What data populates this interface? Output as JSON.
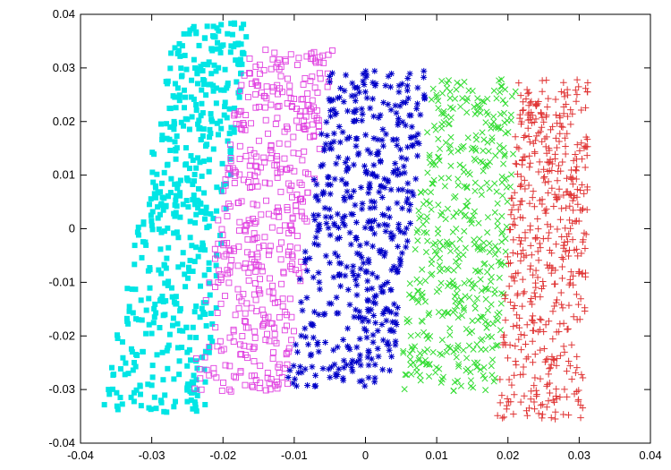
{
  "chart_data": {
    "type": "scatter",
    "title": "",
    "xlabel": "",
    "ylabel": "",
    "xlim": [
      -0.04,
      0.04
    ],
    "ylim": [
      -0.04,
      0.04
    ],
    "grid": false,
    "legend": "none",
    "x_ticks": [
      -0.04,
      -0.03,
      -0.02,
      -0.01,
      0,
      0.01,
      0.02,
      0.03,
      0.04
    ],
    "x_tick_labels": [
      "-0.04",
      "-0.03",
      "-0.02",
      "-0.01",
      "0",
      "0.01",
      "0.02",
      "0.03",
      "0.04"
    ],
    "y_ticks": [
      -0.04,
      -0.03,
      -0.02,
      -0.01,
      0,
      0.01,
      0.02,
      0.03,
      0.04
    ],
    "y_tick_labels": [
      "-0.04",
      "-0.03",
      "-0.02",
      "-0.01",
      "0",
      "0.01",
      "0.02",
      "0.03",
      "0.04"
    ],
    "series": [
      {
        "marker": "filled-square",
        "color": "#00e5e5",
        "count": 520,
        "region": {
          "y_bottom": -0.0345,
          "y_top": 0.0385,
          "x_left_at_bottom": -0.037,
          "x_left_at_top": -0.0265,
          "x_right_at_bottom": -0.0225,
          "x_right_at_top": -0.0165
        }
      },
      {
        "marker": "open-square",
        "color": "#e040e0",
        "count": 480,
        "region": {
          "y_bottom": -0.0305,
          "y_top": 0.0335,
          "x_left_at_bottom": -0.0245,
          "x_left_at_top": -0.017,
          "x_right_at_bottom": -0.011,
          "x_right_at_top": -0.0045
        }
      },
      {
        "marker": "asterisk",
        "color": "#0000c8",
        "count": 500,
        "region": {
          "y_bottom": -0.0295,
          "y_top": 0.0295,
          "x_left_at_bottom": -0.0115,
          "x_left_at_top": -0.005,
          "x_right_at_bottom": 0.0035,
          "x_right_at_top": 0.009
        }
      },
      {
        "marker": "cross",
        "color": "#33dd33",
        "count": 480,
        "region": {
          "y_bottom": -0.0305,
          "y_top": 0.028,
          "x_left_at_bottom": 0.0045,
          "x_left_at_top": 0.0095,
          "x_right_at_bottom": 0.0185,
          "x_right_at_top": 0.0215
        }
      },
      {
        "marker": "plus",
        "color": "#e03535",
        "count": 520,
        "region": {
          "y_bottom": -0.0355,
          "y_top": 0.028,
          "x_left_at_bottom": 0.0185,
          "x_left_at_top": 0.0215,
          "x_right_at_bottom": 0.0305,
          "x_right_at_top": 0.0315
        }
      }
    ]
  }
}
